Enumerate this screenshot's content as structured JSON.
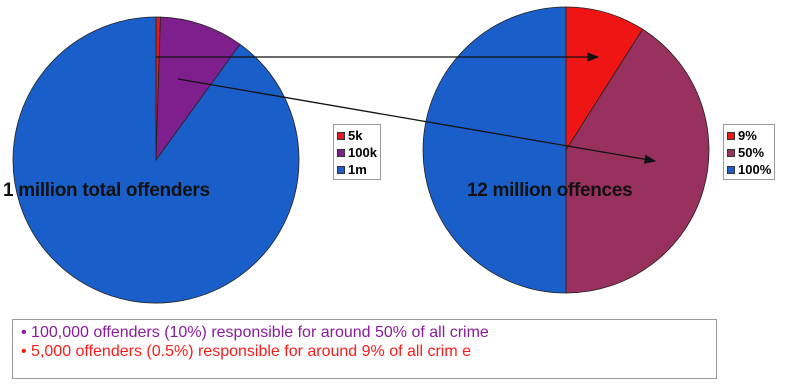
{
  "chart_data": [
    {
      "type": "pie",
      "title": "1 million total offenders",
      "labels": [
        "5k",
        "100k",
        "1m"
      ],
      "values": [
        5000,
        95000,
        900000
      ],
      "colors": [
        "#e11b22",
        "#7f1f8e",
        "#1a5fc9"
      ],
      "legend": "right"
    },
    {
      "type": "pie",
      "title": "12 million offences",
      "labels": [
        "9%",
        "50%",
        "100%"
      ],
      "values": [
        9,
        41,
        50
      ],
      "colors": [
        "#f01515",
        "#99315f",
        "#1a5fc9"
      ],
      "legend": "right"
    }
  ],
  "annotations": [
    {
      "text": "• 100,000 offenders (10%) responsible for around 50% of all crime",
      "color": "#8b1a9c"
    },
    {
      "text": "• 5,000 offenders (0.5%) responsible for around 9% of all crim e",
      "color": "#ff1a1a"
    }
  ]
}
